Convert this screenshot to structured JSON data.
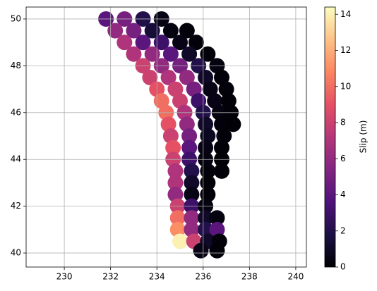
{
  "chart_data": {
    "type": "scatter",
    "colorbar_label": "Slip (m)",
    "colormap": "magma",
    "x": [
      231.8,
      232.6,
      233.4,
      234.2,
      232.2,
      233.0,
      233.8,
      234.6,
      235.3,
      232.6,
      233.4,
      234.2,
      235.0,
      235.7,
      233.0,
      233.8,
      234.6,
      235.4,
      236.2,
      233.4,
      234.2,
      235.0,
      235.8,
      236.6,
      233.7,
      234.5,
      235.3,
      236.1,
      236.8,
      234.0,
      234.8,
      235.6,
      236.3,
      237.0,
      234.2,
      235.0,
      235.8,
      236.5,
      237.1,
      234.4,
      235.2,
      236.0,
      236.7,
      237.2,
      234.5,
      235.3,
      236.1,
      236.8,
      237.3,
      234.6,
      235.4,
      236.2,
      236.9,
      234.7,
      235.4,
      236.1,
      236.8,
      234.7,
      235.4,
      236.1,
      236.8,
      234.8,
      235.5,
      236.2,
      236.8,
      234.8,
      235.5,
      236.2,
      234.8,
      235.5,
      236.2,
      234.9,
      235.5,
      236.1,
      234.9,
      235.5,
      236.1,
      236.6,
      234.9,
      235.5,
      236.1,
      236.6,
      235.0,
      235.6,
      236.2,
      236.7,
      235.9,
      236.6
    ],
    "y": [
      50,
      50,
      50,
      50,
      49.5,
      49.5,
      49.5,
      49.5,
      49.5,
      49,
      49,
      49,
      49,
      49,
      48.5,
      48.5,
      48.5,
      48.5,
      48.5,
      48,
      48,
      48,
      48,
      48,
      47.5,
      47.5,
      47.5,
      47.5,
      47.5,
      47,
      47,
      47,
      47,
      47,
      46.5,
      46.5,
      46.5,
      46.5,
      46.5,
      46,
      46,
      46,
      46,
      46,
      45.5,
      45.5,
      45.5,
      45.5,
      45.5,
      45,
      45,
      45,
      45,
      44.5,
      44.5,
      44.5,
      44.5,
      44,
      44,
      44,
      44,
      43.5,
      43.5,
      43.5,
      43.5,
      43,
      43,
      43,
      42.5,
      42.5,
      42.5,
      42,
      42,
      42,
      41.5,
      41.5,
      41.5,
      41.5,
      41,
      41,
      41,
      41,
      40.5,
      40.5,
      40.5,
      40.5,
      40.1,
      40.1
    ],
    "c": [
      4,
      5,
      2,
      0.5,
      6,
      5,
      1.5,
      0.3,
      0.2,
      7,
      4,
      3,
      0.5,
      0.2,
      7,
      6,
      4,
      1,
      0.2,
      8,
      6,
      5,
      2,
      0.3,
      8,
      7,
      6,
      1,
      0.2,
      9,
      8,
      5,
      0.5,
      0.2,
      10,
      8,
      3,
      0.5,
      0.1,
      10,
      7,
      2,
      0.3,
      0.1,
      9,
      6,
      1,
      0.2,
      0.1,
      8,
      5,
      0.8,
      0.2,
      9,
      4,
      0.5,
      0.1,
      8,
      3,
      0.3,
      0.1,
      7,
      2,
      0.2,
      0.1,
      7,
      1,
      0.1,
      6,
      0.5,
      0.1,
      8,
      3,
      0.3,
      10,
      6,
      1,
      0.3,
      11,
      6,
      2,
      4,
      14,
      8,
      1,
      0.2,
      0.5,
      0.1
    ],
    "xlim": [
      228.35,
      240.46
    ],
    "xticks": [
      230,
      232,
      234,
      236,
      238,
      240
    ],
    "ylim": [
      39.4,
      50.51
    ],
    "yticks": [
      40,
      42,
      44,
      46,
      48,
      50
    ],
    "clim": [
      0,
      14.4
    ],
    "cticks": [
      0,
      2,
      4,
      6,
      8,
      10,
      12,
      14
    ],
    "grid": true
  }
}
